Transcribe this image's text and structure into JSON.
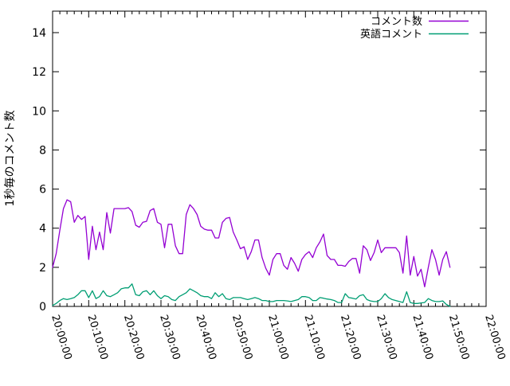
{
  "chart_data": {
    "type": "line",
    "title": "",
    "xlabel": "",
    "ylabel": "1秒毎のコメント数",
    "background_color": "#ffffff",
    "axis_color": "#000000",
    "grid": false,
    "legend_position": "top-right-inside",
    "y_ticks": [
      0,
      2,
      4,
      6,
      8,
      10,
      12,
      14
    ],
    "y_range": [
      0,
      15.1
    ],
    "x_tick_labels": [
      "20:00:00",
      "20:10:00",
      "20:20:00",
      "20:30:00",
      "20:40:00",
      "20:50:00",
      "21:00:00",
      "21:10:00",
      "21:20:00",
      "21:30:00",
      "21:40:00",
      "21:50:00",
      "22:00:00"
    ],
    "x_range": [
      "20:00:00",
      "22:00:00"
    ],
    "x_minor_tick_seconds": 120,
    "x_major_tick_seconds": 600,
    "legend": [
      {
        "label": "コメント数",
        "color": "#9400d3"
      },
      {
        "label": "英語コメント",
        "color": "#009e73"
      }
    ],
    "series": [
      {
        "name": "コメント数",
        "color": "#9400d3",
        "start_time": "20:00:00",
        "step_seconds": 60,
        "values": [
          2.0,
          2.7,
          3.9,
          5.0,
          5.45,
          5.35,
          4.3,
          4.65,
          4.45,
          4.6,
          2.4,
          4.1,
          2.9,
          3.8,
          2.9,
          4.8,
          3.75,
          5.0,
          5.0,
          5.0,
          5.0,
          5.05,
          4.85,
          4.15,
          4.05,
          4.3,
          4.35,
          4.9,
          5.0,
          4.3,
          4.2,
          3.0,
          4.2,
          4.2,
          3.1,
          2.7,
          2.7,
          4.7,
          5.2,
          5.0,
          4.7,
          4.1,
          3.95,
          3.9,
          3.9,
          3.5,
          3.5,
          4.3,
          4.5,
          4.55,
          3.8,
          3.4,
          2.95,
          3.05,
          2.4,
          2.8,
          3.4,
          3.4,
          2.5,
          1.95,
          1.6,
          2.4,
          2.7,
          2.7,
          2.1,
          1.9,
          2.5,
          2.2,
          1.8,
          2.4,
          2.65,
          2.8,
          2.5,
          3.0,
          3.3,
          3.7,
          2.6,
          2.4,
          2.4,
          2.1,
          2.1,
          2.05,
          2.3,
          2.45,
          2.45,
          1.7,
          3.1,
          2.9,
          2.35,
          2.75,
          3.4,
          2.75,
          3.0,
          3.0,
          3.0,
          3.0,
          2.75,
          1.7,
          3.6,
          1.6,
          2.55,
          1.55,
          1.9,
          1.0,
          2.0,
          2.9,
          2.4,
          1.6,
          2.4,
          2.8,
          2.0
        ]
      },
      {
        "name": "英語コメント",
        "color": "#009e73",
        "start_time": "20:00:00",
        "step_seconds": 60,
        "values": [
          0.05,
          0.15,
          0.3,
          0.4,
          0.35,
          0.4,
          0.45,
          0.6,
          0.8,
          0.8,
          0.45,
          0.8,
          0.4,
          0.5,
          0.8,
          0.55,
          0.5,
          0.6,
          0.7,
          0.9,
          0.95,
          0.95,
          1.15,
          0.6,
          0.55,
          0.75,
          0.8,
          0.6,
          0.8,
          0.55,
          0.4,
          0.55,
          0.5,
          0.35,
          0.3,
          0.5,
          0.6,
          0.7,
          0.9,
          0.8,
          0.7,
          0.55,
          0.5,
          0.5,
          0.4,
          0.7,
          0.5,
          0.65,
          0.4,
          0.35,
          0.45,
          0.45,
          0.45,
          0.4,
          0.35,
          0.4,
          0.45,
          0.4,
          0.3,
          0.3,
          0.25,
          0.25,
          0.3,
          0.3,
          0.3,
          0.28,
          0.25,
          0.3,
          0.35,
          0.5,
          0.5,
          0.45,
          0.3,
          0.3,
          0.45,
          0.42,
          0.38,
          0.35,
          0.3,
          0.2,
          0.2,
          0.65,
          0.45,
          0.42,
          0.38,
          0.55,
          0.6,
          0.35,
          0.28,
          0.25,
          0.25,
          0.4,
          0.65,
          0.45,
          0.35,
          0.3,
          0.25,
          0.2,
          0.75,
          0.2,
          0.15,
          0.15,
          0.18,
          0.2,
          0.4,
          0.3,
          0.25,
          0.25,
          0.28,
          0.1,
          0.0
        ]
      }
    ]
  }
}
